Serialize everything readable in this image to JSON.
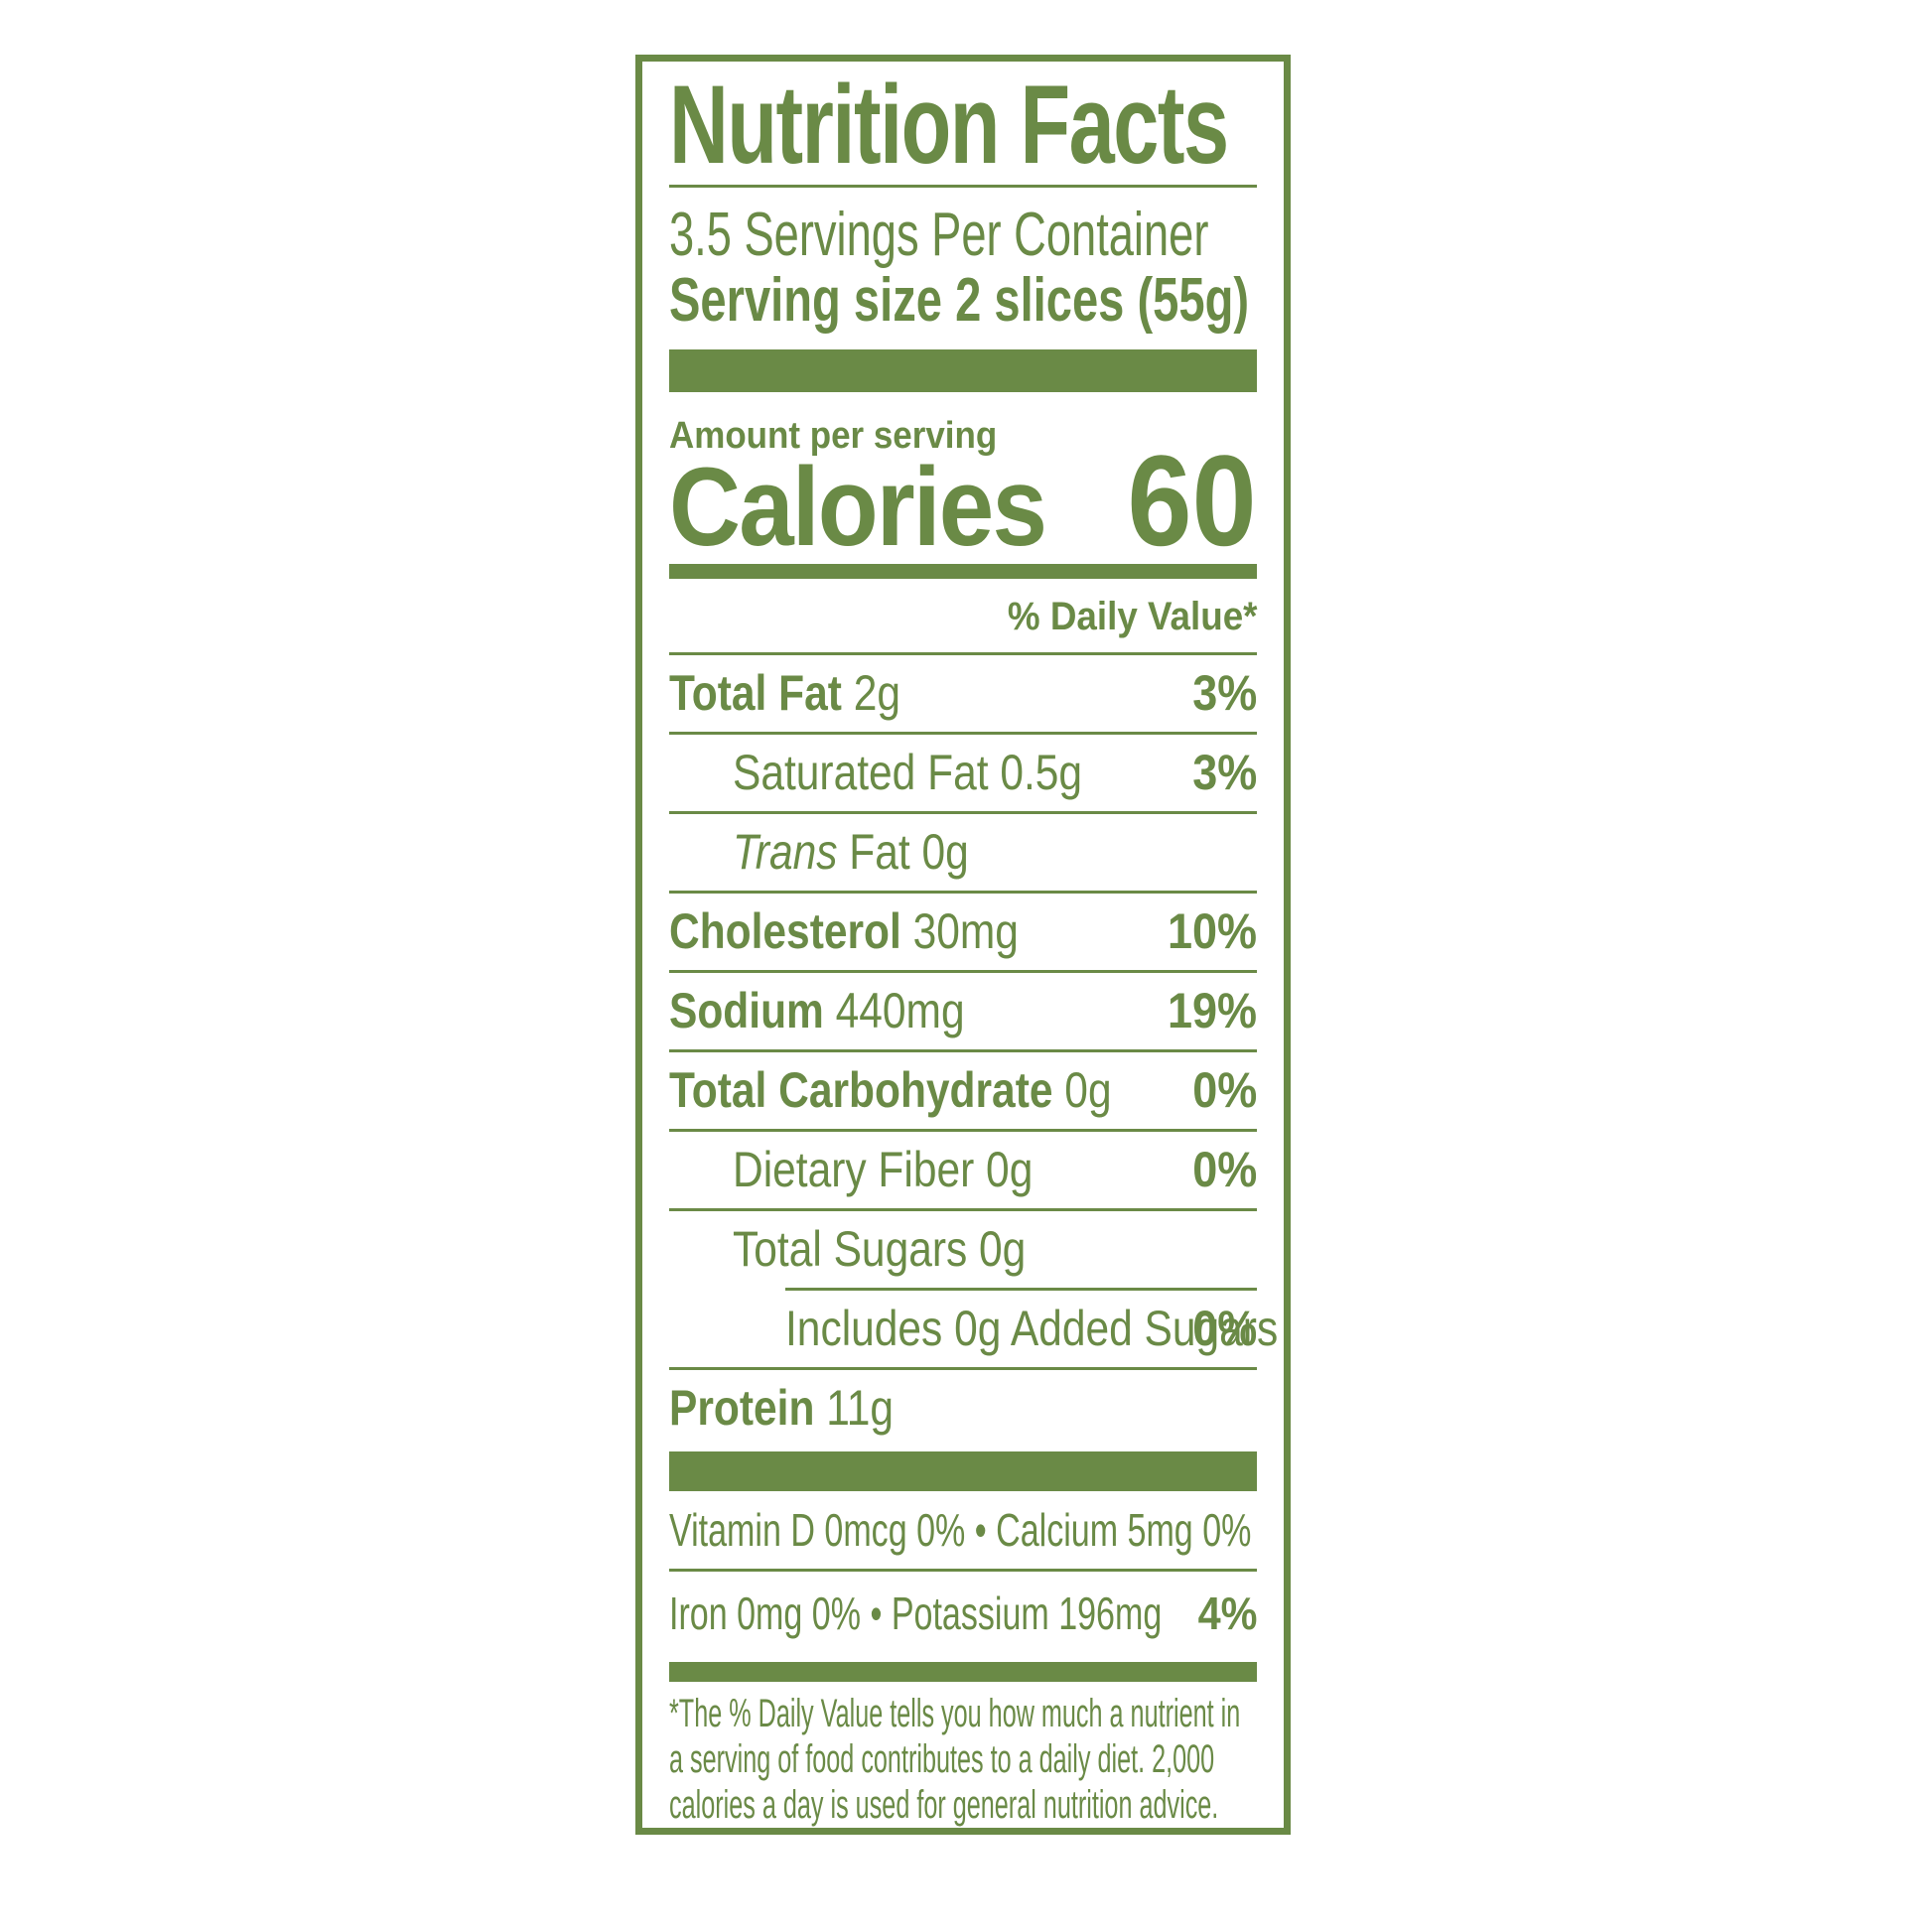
{
  "accent_color": "#6A8A46",
  "label": {
    "title": "Nutrition Facts",
    "servings_per_container": "3.5 Servings Per Container",
    "serving_size": "Serving size 2 slices (55g)",
    "amount_per_serving": "Amount per serving",
    "calories_label": "Calories",
    "calories_value": "60",
    "daily_value_header": "% Daily Value*",
    "rows": [
      {
        "bold": "Total Fat ",
        "rest": "2g",
        "dv": "3%"
      },
      {
        "rest": "Saturated Fat 0.5g",
        "dv": "3%"
      },
      {
        "italic": "Trans",
        "rest": " Fat 0g"
      },
      {
        "bold": "Cholesterol ",
        "rest": "30mg",
        "dv": "10%"
      },
      {
        "bold": "Sodium ",
        "rest": "440mg",
        "dv": "19%"
      },
      {
        "bold": "Total Carbohydrate ",
        "rest": "0g",
        "dv": "0%"
      },
      {
        "rest": "Dietary Fiber 0g",
        "dv": "0%"
      },
      {
        "rest": "Total Sugars 0g"
      },
      {
        "rest": "Includes 0g Added Sugars",
        "dv": "0%"
      },
      {
        "bold": "Protein ",
        "rest": "11g"
      }
    ],
    "micronutrients": [
      {
        "text": "Vitamin D 0mcg 0% • Calcium 5mg 0%"
      },
      {
        "text": "Iron 0mg 0% • Potassium 196mg",
        "dv": "4%"
      }
    ],
    "footnote_lines": [
      "*The % Daily Value tells you how much a nutrient in",
      "a serving of food contributes to a daily diet. 2,000",
      "calories a day is used for general nutrition advice."
    ]
  }
}
